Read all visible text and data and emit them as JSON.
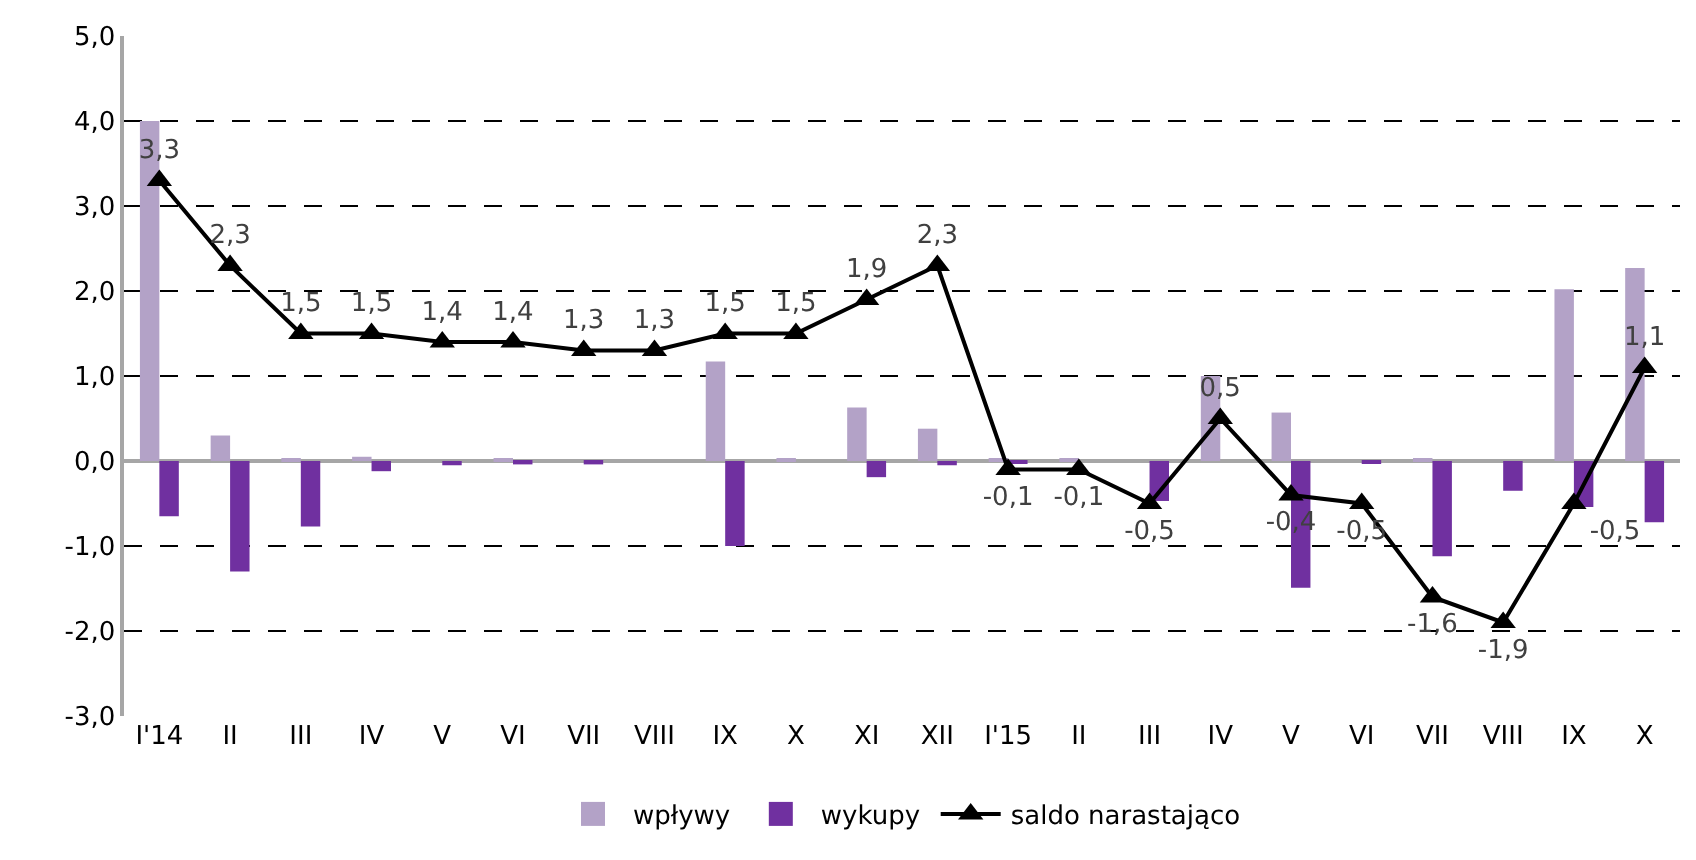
{
  "chart_data": {
    "type": "bar",
    "categories": [
      "I'14",
      "II",
      "III",
      "IV",
      "V",
      "VI",
      "VII",
      "VIII",
      "IX",
      "X",
      "XI",
      "XII",
      "I'15",
      "II",
      "III",
      "IV",
      "V",
      "VI",
      "VII",
      "VIII",
      "IX",
      "X"
    ],
    "series": [
      {
        "name": "wpływy",
        "color": "#b3a2c7",
        "values": [
          4.0,
          0.3,
          0.02,
          0.05,
          0,
          0.03,
          0,
          0,
          1.17,
          0.02,
          0.63,
          0.38,
          0.03,
          0.02,
          0,
          1.0,
          0.57,
          0,
          0.02,
          0,
          2.02,
          2.27
        ]
      },
      {
        "name": "wykupy",
        "color": "#7030a0",
        "values": [
          -0.65,
          -1.3,
          -0.77,
          -0.12,
          -0.05,
          -0.04,
          -0.04,
          0,
          -1.0,
          0,
          -0.19,
          -0.05,
          -0.02,
          0,
          -0.47,
          0,
          -1.49,
          -0.03,
          -1.12,
          -0.35,
          -0.54,
          -0.72
        ]
      },
      {
        "name": "saldo narastająco",
        "type": "line",
        "color": "#000000",
        "marker": "triangle",
        "line_style": "solid",
        "values": [
          3.3,
          2.3,
          1.5,
          1.5,
          1.4,
          1.4,
          1.3,
          1.3,
          1.5,
          1.5,
          1.9,
          2.3,
          -0.1,
          -0.1,
          -0.5,
          0.5,
          -0.4,
          -0.5,
          -1.6,
          -1.9,
          -0.5,
          1.1
        ],
        "value_labels": [
          "3,3",
          "2,3",
          "1,5",
          "1,5",
          "1,4",
          "1,4",
          "1,3",
          "1,3",
          "1,5",
          "1,5",
          "1,9",
          "2,3",
          "-0,1",
          "-0,1",
          "-0,5",
          "0,5",
          "-0,4",
          "-0,5",
          "-1,6",
          "-1,9",
          "-0,5",
          "1,1"
        ]
      }
    ],
    "ylim": [
      -3,
      5
    ],
    "yticks": [
      {
        "value": -3,
        "label": "-3,0"
      },
      {
        "value": -2,
        "label": "-2,0"
      },
      {
        "value": -1,
        "label": "-1,0"
      },
      {
        "value": 0,
        "label": "0,0"
      },
      {
        "value": 1,
        "label": "1,0"
      },
      {
        "value": 2,
        "label": "2,0"
      },
      {
        "value": 3,
        "label": "3,0"
      },
      {
        "value": 4,
        "label": "4,0"
      },
      {
        "value": 5,
        "label": "5,0"
      }
    ],
    "grid": "y",
    "legend": "bottom"
  }
}
